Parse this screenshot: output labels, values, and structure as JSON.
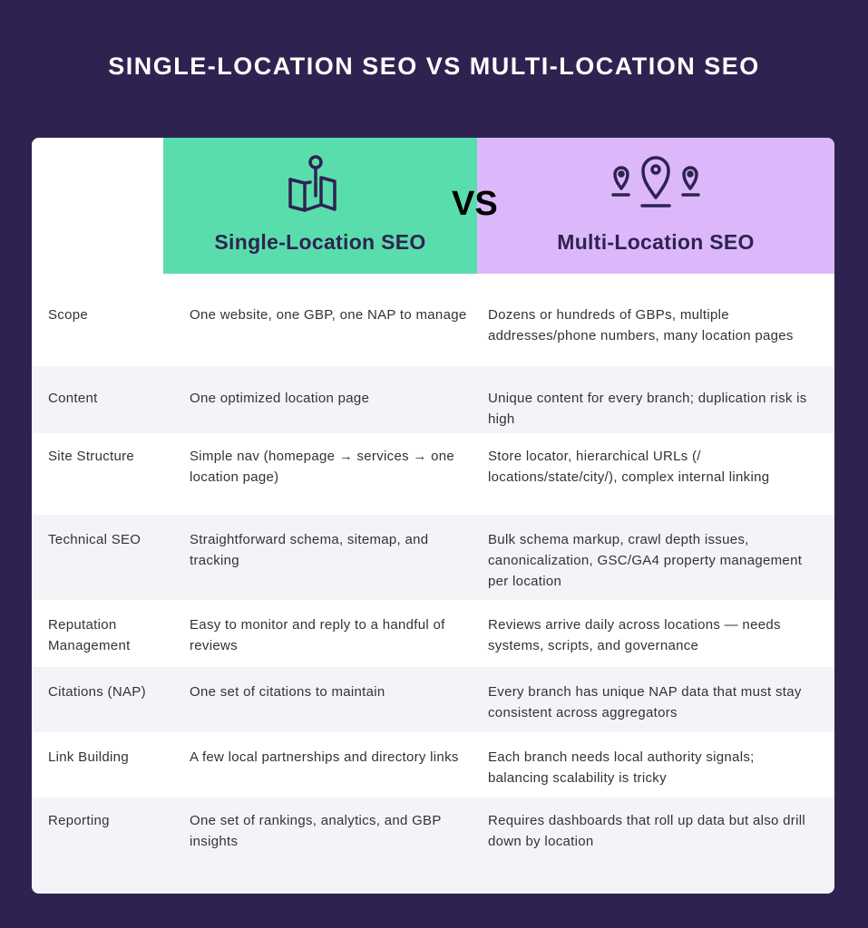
{
  "title": "SINGLE-LOCATION SEO VS MULTI-LOCATION SEO",
  "header": {
    "single": {
      "label": "Single-Location SEO",
      "icon": "map-pin-icon",
      "color": "#5ADDAC"
    },
    "vs": "VS",
    "multi": {
      "label": "Multi-Location SEO",
      "icon": "multiple-pins-icon",
      "color": "#DCB8FB"
    }
  },
  "colors": {
    "background": "#2E2350",
    "text_dark": "#2E2350",
    "row_alt": "#F3F4F8"
  },
  "rows": [
    {
      "label": "Scope",
      "single": "One website, one GBP, one NAP to manage",
      "multi": "Dozens or hundreds of GBPs, multiple addresses/phone numbers, many location pages"
    },
    {
      "label": "Content",
      "single": "One optimized location page",
      "multi": "Unique content for every branch; duplication risk is high"
    },
    {
      "label": "Site Structure",
      "single": "Simple nav (homepage → services → one location page)",
      "multi": "Store locator, hierarchical URLs (/ locations/state/city/), complex internal linking"
    },
    {
      "label": "Technical SEO",
      "single": "Straightforward schema, sitemap, and tracking",
      "multi": "Bulk schema markup, crawl depth issues, canonicalization, GSC/GA4 property management per location"
    },
    {
      "label": "Reputation Management",
      "single": "Easy to monitor and reply to a handful of reviews",
      "multi": "Reviews arrive daily across locations — needs systems, scripts, and governance"
    },
    {
      "label": "Citations (NAP)",
      "single": "One set of citations to maintain",
      "multi": "Every branch has unique NAP data that must stay consistent across aggregators"
    },
    {
      "label": "Link Building",
      "single": "A few local partnerships and directory links",
      "multi": "Each branch needs local authority signals; balancing scalability is tricky"
    },
    {
      "label": "Reporting",
      "single": "One set of rankings, analytics, and GBP insights",
      "multi": "Requires dashboards that roll up data but also drill down by location"
    }
  ]
}
